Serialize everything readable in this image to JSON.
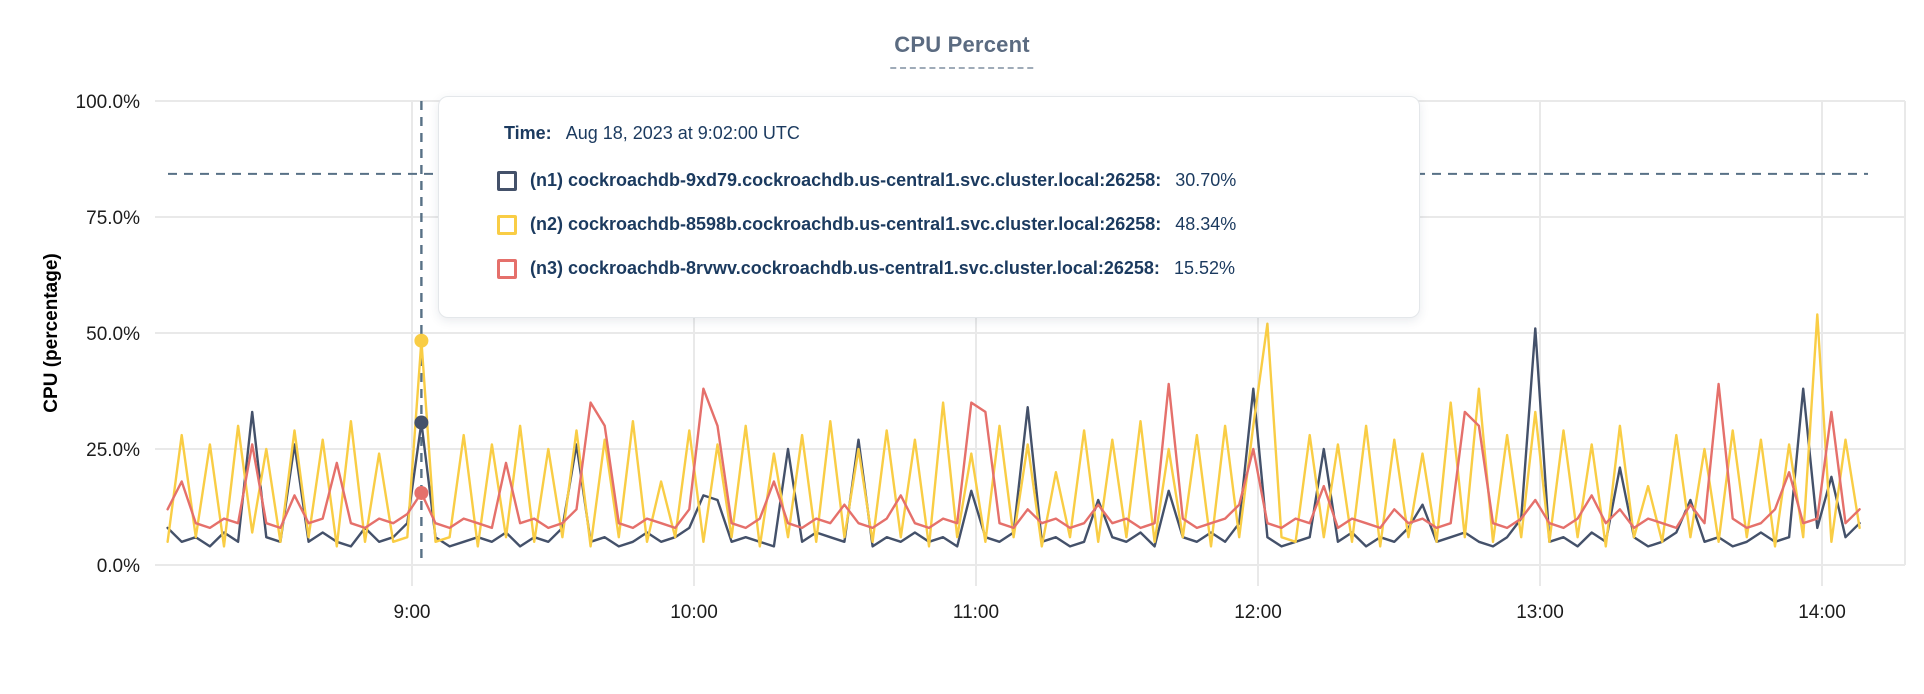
{
  "title": "CPU Percent",
  "colors": {
    "n1_line": "#44516a",
    "n2_line": "#f9cd45",
    "n3_line": "#e5706b",
    "grid": "#e9e9e9",
    "crosshair": "#587186",
    "tooltip_text": "#1b3a5f",
    "title_text": "#5b6b81",
    "tick_text": "#1c1c1c"
  },
  "tooltip": {
    "time_label": "Time:",
    "time_value": "Aug 18, 2023 at 9:02:00 UTC",
    "series": [
      {
        "id": "n1",
        "label": "(n1) cockroachdb-9xd79.cockroachdb.us-central1.svc.cluster.local:26258:",
        "value": "30.70%",
        "color": "#44516a"
      },
      {
        "id": "n2",
        "label": "(n2) cockroachdb-8598b.cockroachdb.us-central1.svc.cluster.local:26258:",
        "value": "48.34%",
        "color": "#f9cd45"
      },
      {
        "id": "n3",
        "label": "(n3) cockroachdb-8rvwv.cockroachdb.us-central1.svc.cluster.local:26258:",
        "value": "15.52%",
        "color": "#e5706b"
      }
    ]
  },
  "axes": {
    "y_label": "CPU (percentage)",
    "y_ticks": [
      {
        "label": "100.0%",
        "value": 100
      },
      {
        "label": "75.0%",
        "value": 75
      },
      {
        "label": "50.0%",
        "value": 50
      },
      {
        "label": "25.0%",
        "value": 25
      },
      {
        "label": "0.0%",
        "value": 0
      }
    ],
    "x_ticks": [
      {
        "label": "9:00",
        "hour": 9
      },
      {
        "label": "10:00",
        "hour": 10
      },
      {
        "label": "11:00",
        "hour": 11
      },
      {
        "label": "12:00",
        "hour": 12
      },
      {
        "label": "13:00",
        "hour": 13
      },
      {
        "label": "14:00",
        "hour": 14
      }
    ]
  },
  "chart_data": {
    "type": "line",
    "title": "CPU Percent",
    "xlabel": "",
    "ylabel": "CPU (percentage)",
    "ylim": [
      0,
      100
    ],
    "grid": true,
    "x_unit": "hour of day, UTC (decimal)",
    "x_start": 8.1333,
    "x_step": 0.05,
    "x_range": [
      8.1333,
      14.1333
    ],
    "threshold_dashed_y": 84.3,
    "hover": {
      "index": 18,
      "x": 9.0333,
      "time": "Aug 18, 2023 at 9:02:00 UTC",
      "values": {
        "n1": 30.7,
        "n2": 48.34,
        "n3": 15.52
      }
    },
    "note": "Series values estimated from pixels at ~3-minute resolution; hover-point values are exact from tooltip.",
    "series": [
      {
        "name": "(n1) cockroachdb-9xd79.cockroachdb.us-central1.svc.cluster.local:26258",
        "color": "#44516a",
        "values": [
          8,
          5,
          6,
          4,
          7,
          5,
          33,
          6,
          5,
          26,
          5,
          7,
          5,
          4,
          8,
          5,
          6,
          9,
          30.7,
          6,
          4,
          5,
          6,
          5,
          7,
          4,
          6,
          5,
          8,
          26,
          5,
          6,
          4,
          5,
          7,
          5,
          6,
          8,
          15,
          14,
          5,
          6,
          5,
          4,
          25,
          5,
          7,
          6,
          5,
          27,
          4,
          6,
          5,
          7,
          5,
          6,
          4,
          16,
          6,
          5,
          7,
          34,
          5,
          6,
          4,
          5,
          14,
          6,
          5,
          7,
          4,
          16,
          6,
          5,
          7,
          5,
          9,
          38,
          6,
          4,
          5,
          6,
          25,
          5,
          7,
          4,
          6,
          5,
          8,
          13,
          5,
          6,
          7,
          5,
          4,
          6,
          10,
          51,
          5,
          6,
          4,
          7,
          5,
          21,
          6,
          4,
          5,
          7,
          14,
          5,
          6,
          4,
          5,
          7,
          5,
          6,
          38,
          8,
          19,
          6,
          9
        ]
      },
      {
        "name": "(n2) cockroachdb-8598b.cockroachdb.us-central1.svc.cluster.local:26258",
        "color": "#f9cd45",
        "values": [
          5,
          28,
          6,
          26,
          4,
          30,
          7,
          25,
          5,
          29,
          6,
          27,
          4,
          31,
          5,
          24,
          5,
          6,
          48.34,
          5,
          6,
          28,
          4,
          26,
          6,
          30,
          5,
          25,
          6,
          29,
          4,
          27,
          6,
          31,
          5,
          18,
          6,
          29,
          5,
          26,
          6,
          30,
          4,
          24,
          6,
          28,
          5,
          31,
          6,
          25,
          5,
          29,
          6,
          27,
          4,
          35,
          6,
          24,
          5,
          30,
          6,
          26,
          4,
          20,
          6,
          29,
          5,
          27,
          6,
          31,
          5,
          25,
          6,
          28,
          4,
          30,
          6,
          30,
          52,
          6,
          5,
          28,
          6,
          26,
          5,
          30,
          4,
          27,
          6,
          24,
          5,
          35,
          6,
          38,
          5,
          28,
          6,
          33,
          5,
          29,
          6,
          26,
          4,
          30,
          6,
          17,
          5,
          28,
          6,
          25,
          5,
          29,
          6,
          27,
          4,
          26,
          6,
          54,
          5,
          27,
          8
        ]
      },
      {
        "name": "(n3) cockroachdb-8rvwv.cockroachdb.us-central1.svc.cluster.local:26258",
        "color": "#e5706b",
        "values": [
          12,
          18,
          9,
          8,
          10,
          9,
          26,
          9,
          8,
          15,
          9,
          10,
          22,
          9,
          8,
          10,
          9,
          11,
          15.52,
          9,
          8,
          10,
          9,
          8,
          22,
          9,
          10,
          8,
          9,
          12,
          35,
          30,
          9,
          8,
          10,
          9,
          8,
          12,
          38,
          30,
          9,
          8,
          10,
          18,
          9,
          8,
          10,
          9,
          13,
          9,
          8,
          10,
          15,
          9,
          8,
          10,
          9,
          35,
          33,
          9,
          8,
          12,
          9,
          10,
          8,
          9,
          13,
          9,
          10,
          8,
          9,
          39,
          10,
          8,
          9,
          10,
          13,
          25,
          9,
          8,
          10,
          9,
          17,
          8,
          10,
          9,
          8,
          12,
          9,
          10,
          8,
          9,
          33,
          30,
          9,
          8,
          10,
          14,
          9,
          8,
          10,
          15,
          9,
          12,
          8,
          10,
          9,
          8,
          13,
          9,
          39,
          10,
          8,
          9,
          12,
          20,
          9,
          10,
          33,
          9,
          12
        ]
      }
    ]
  }
}
